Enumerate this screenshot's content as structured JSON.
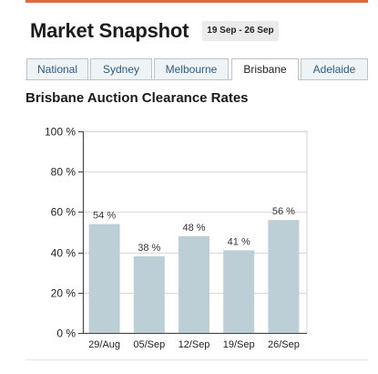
{
  "header": {
    "title": "Market Snapshot",
    "date_range": "19 Sep - 26 Sep"
  },
  "tabs": [
    {
      "label": "National",
      "active": false
    },
    {
      "label": "Sydney",
      "active": false
    },
    {
      "label": "Melbourne",
      "active": false
    },
    {
      "label": "Brisbane",
      "active": true
    },
    {
      "label": "Adelaide",
      "active": false
    }
  ],
  "colors": {
    "accent": "#e2673c",
    "bar": "#bccfd6",
    "tab_text": "#2d5b82"
  },
  "chart_data": {
    "type": "bar",
    "title": "Brisbane Auction Clearance Rates",
    "categories": [
      "29/Aug",
      "05/Sep",
      "12/Sep",
      "19/Sep",
      "26/Sep"
    ],
    "values": [
      54,
      38,
      48,
      41,
      56
    ],
    "value_labels": [
      "54 %",
      "38 %",
      "48 %",
      "41 %",
      "56 %"
    ],
    "y_ticks": [
      "0 %",
      "20 %",
      "40 %",
      "60 %",
      "80 %",
      "100 %"
    ],
    "y_tick_values": [
      0,
      20,
      40,
      60,
      80,
      100
    ],
    "ylim": [
      0,
      100
    ],
    "xlabel": "",
    "ylabel": "",
    "grid": true
  }
}
